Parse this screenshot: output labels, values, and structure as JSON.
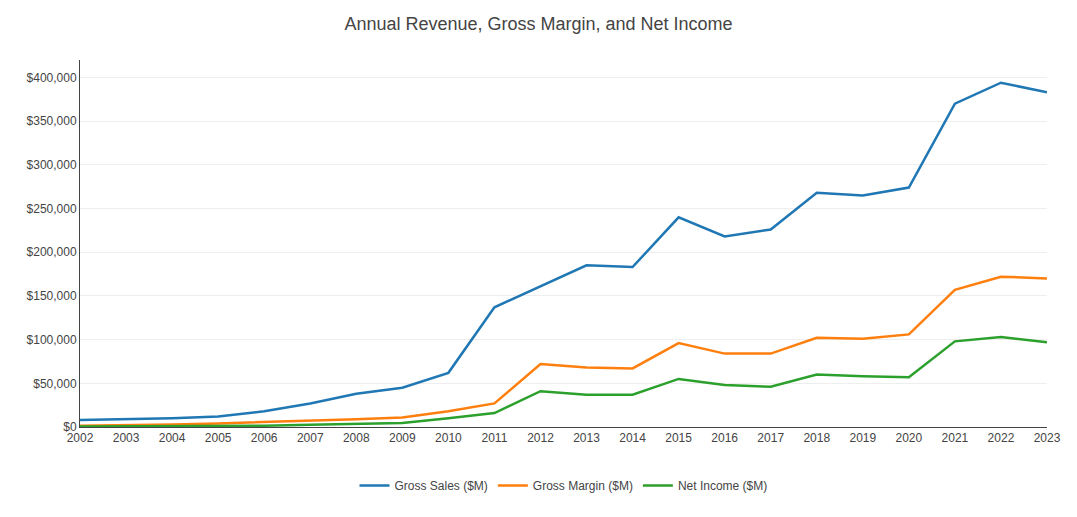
{
  "chart_data": {
    "type": "line",
    "title": "Annual Revenue, Gross Margin, and Net Income",
    "x": [
      2002,
      2003,
      2004,
      2005,
      2006,
      2007,
      2008,
      2009,
      2010,
      2011,
      2012,
      2013,
      2014,
      2015,
      2016,
      2017,
      2018,
      2019,
      2020,
      2021,
      2022,
      2023
    ],
    "series": [
      {
        "name": "Gross Sales ($M)",
        "values": [
          8000,
          9000,
          10000,
          12000,
          18000,
          27000,
          38000,
          45000,
          62000,
          137000,
          161000,
          185000,
          183000,
          240000,
          218000,
          226000,
          268000,
          265000,
          274000,
          370000,
          394000,
          383000
        ]
      },
      {
        "name": "Gross Margin ($M)",
        "values": [
          1500,
          2000,
          3000,
          4000,
          5500,
          7000,
          9000,
          11000,
          18000,
          27000,
          72000,
          68000,
          67000,
          96000,
          84000,
          84000,
          102000,
          101000,
          106000,
          157000,
          172000,
          170000
        ]
      },
      {
        "name": "Net Income ($M)",
        "values": [
          500,
          600,
          800,
          1000,
          1500,
          2500,
          3500,
          4500,
          10000,
          16000,
          41000,
          37000,
          37000,
          55000,
          48000,
          46000,
          60000,
          58000,
          57000,
          98000,
          103000,
          97000
        ]
      }
    ],
    "xlim": [
      2002,
      2023
    ],
    "xticks": [
      2002,
      2003,
      2004,
      2005,
      2006,
      2007,
      2008,
      2009,
      2010,
      2011,
      2012,
      2013,
      2014,
      2015,
      2016,
      2017,
      2018,
      2019,
      2020,
      2021,
      2022,
      2023
    ],
    "ylim": [
      0,
      420000
    ],
    "yticks": [
      {
        "value": 0,
        "label": "$0"
      },
      {
        "value": 50000,
        "label": "$50,000"
      },
      {
        "value": 100000,
        "label": "$100,000"
      },
      {
        "value": 150000,
        "label": "$150,000"
      },
      {
        "value": 200000,
        "label": "$200,000"
      },
      {
        "value": 250000,
        "label": "$250,000"
      },
      {
        "value": 300000,
        "label": "$300,000"
      },
      {
        "value": 350000,
        "label": "$350,000"
      },
      {
        "value": 400000,
        "label": "$400,000"
      }
    ],
    "grid": true,
    "legend": "bottom"
  }
}
